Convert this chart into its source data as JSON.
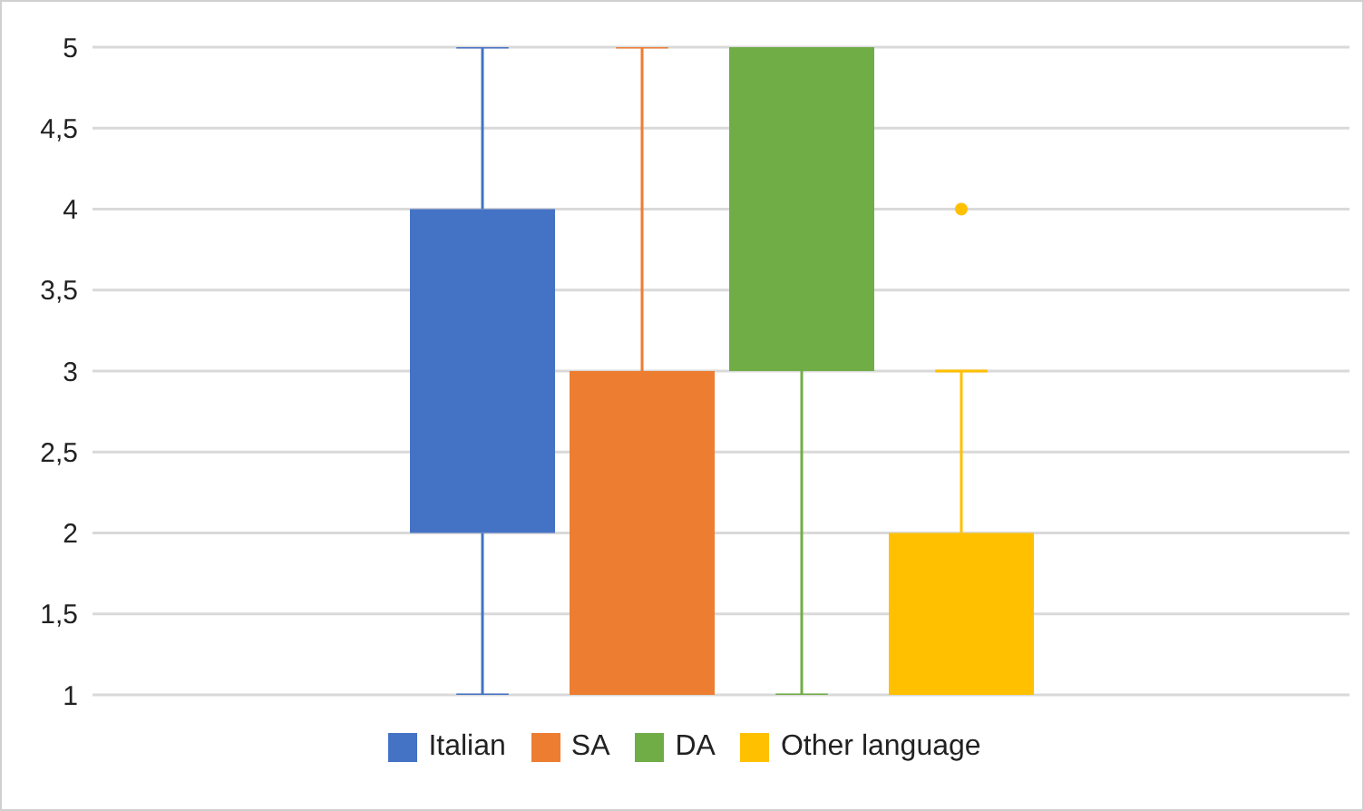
{
  "chart_data": {
    "type": "box",
    "categories": [
      null
    ],
    "series": [
      {
        "name": "Italian",
        "color": "#4472c4",
        "boxes": [
          {
            "low": 1,
            "q1": 2,
            "median": 3,
            "q3": 4,
            "high": 5
          }
        ]
      },
      {
        "name": "SA",
        "color": "#ed7d31",
        "boxes": [
          {
            "low": 1,
            "q1": 1,
            "median": 2,
            "q3": 3,
            "high": 5
          }
        ]
      },
      {
        "name": "DA",
        "color": "#70ad47",
        "boxes": [
          {
            "low": 1,
            "q1": 3,
            "median": 4,
            "q3": 5,
            "high": 5
          }
        ]
      },
      {
        "name": "Other language",
        "color": "#ffc000",
        "boxes": [
          {
            "low": 1,
            "q1": 1,
            "median": 1,
            "q3": 2,
            "high": 3,
            "outliers": [
              4
            ]
          }
        ]
      }
    ],
    "ylim": [
      1,
      5
    ],
    "yticks": [
      1,
      {
        "value": 1.5,
        "label": "1,5"
      },
      2,
      {
        "value": 2.5,
        "label": "2,5"
      },
      3,
      {
        "value": 3.5,
        "label": "3,5"
      },
      4,
      {
        "value": 4.5,
        "label": "4,5"
      },
      5
    ],
    "grid": "y",
    "legend": "bottom"
  }
}
